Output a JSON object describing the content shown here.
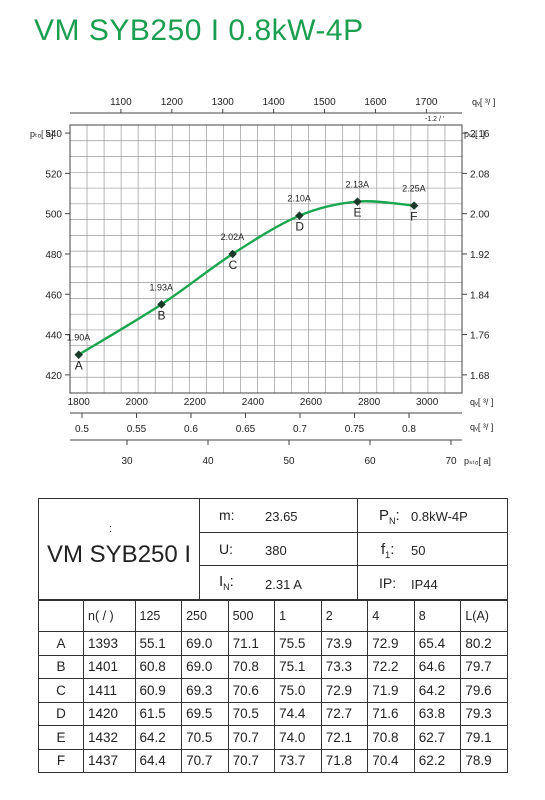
{
  "title": "VM SYB250 I 0.8kW-4P",
  "chart_data": {
    "type": "line",
    "top_axis": {
      "label": "qᵥ[   ³/     ]",
      "ticks": [
        1100,
        1200,
        1300,
        1400,
        1500,
        1600,
        1700
      ],
      "range": [
        1000,
        1770
      ],
      "sub_label": "-1.2  /  ' "
    },
    "left_axis": {
      "label": "pₜₒ[  a]",
      "ticks": [
        420,
        440,
        460,
        480,
        500,
        520,
        540
      ],
      "range": [
        411,
        544
      ]
    },
    "right_axis": {
      "label": "pₜₒ[       .]",
      "ticks": [
        1.68,
        1.76,
        1.84,
        1.92,
        2.0,
        2.08,
        2.16
      ]
    },
    "bottom_axes": [
      {
        "label": "qᵥ[  ³/  ]",
        "ticks": [
          1800,
          2000,
          2200,
          2400,
          2600,
          2800,
          3000
        ]
      },
      {
        "label": "qᵥ[  ³/  ]",
        "ticks": [
          0.5,
          0.55,
          0.6,
          0.65,
          0.7,
          0.75,
          0.8
        ]
      },
      {
        "label": "pₛₜₒ[  a]",
        "ticks": [
          30,
          40,
          50,
          60,
          70
        ]
      }
    ],
    "bottom_range": [
      1770,
      3120
    ],
    "points": [
      {
        "id": "A",
        "current": "1.90A",
        "x": 1800,
        "y": 430
      },
      {
        "id": "B",
        "current": "1.93A",
        "x": 2085,
        "y": 455
      },
      {
        "id": "C",
        "current": "2.02A",
        "x": 2330,
        "y": 480
      },
      {
        "id": "D",
        "current": "2.10A",
        "x": 2560,
        "y": 499
      },
      {
        "id": "E",
        "current": "2.13A",
        "x": 2760,
        "y": 506
      },
      {
        "id": "F",
        "current": "2.25A",
        "x": 2955,
        "y": 504
      }
    ],
    "curve_color": "#1aa64f",
    "grid": true
  },
  "spec": {
    "model_label": ":",
    "model": "VM SYB250 I",
    "m_label": "m:",
    "m_value": "23.65",
    "pn_label": "P",
    "pn_sub": "N",
    "pn_colon": ":",
    "pn_value": "0.8kW-4P",
    "u_label": "U:",
    "u_value": "380",
    "f_label": "f",
    "f_sub": "1",
    "f_colon": ":",
    "f_value": "50",
    "in_label": "I",
    "in_sub": "N",
    "in_colon": ":",
    "in_value": "2.31  A",
    "ip_label": "IP:",
    "ip_value": "IP44"
  },
  "table": {
    "headers": [
      "",
      "n(  /  )",
      "125",
      "250",
      "500",
      "1",
      "2",
      "4",
      "8",
      "L(A)"
    ],
    "rows": [
      [
        "A",
        "1393",
        "55.1",
        "69.0",
        "71.1",
        "75.5",
        "73.9",
        "72.9",
        "65.4",
        "80.2"
      ],
      [
        "B",
        "1401",
        "60.8",
        "69.0",
        "70.8",
        "75.1",
        "73.3",
        "72.2",
        "64.6",
        "79.7"
      ],
      [
        "C",
        "1411",
        "60.9",
        "69.3",
        "70.6",
        "75.0",
        "72.9",
        "71.9",
        "64.2",
        "79.6"
      ],
      [
        "D",
        "1420",
        "61.5",
        "69.5",
        "70.5",
        "74.4",
        "72.7",
        "71.6",
        "63.8",
        "79.3"
      ],
      [
        "E",
        "1432",
        "64.2",
        "70.5",
        "70.7",
        "74.0",
        "72.1",
        "70.8",
        "62.7",
        "79.1"
      ],
      [
        "F",
        "1437",
        "64.4",
        "70.7",
        "70.7",
        "73.7",
        "71.8",
        "70.4",
        "62.2",
        "78.9"
      ]
    ]
  }
}
